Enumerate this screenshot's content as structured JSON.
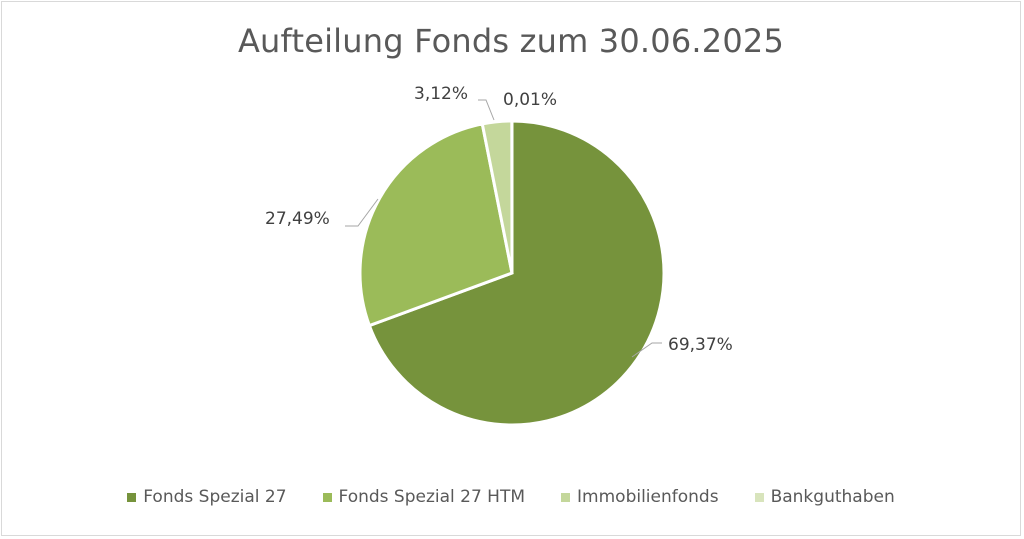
{
  "chart_data": {
    "type": "pie",
    "title": "Aufteilung Fonds zum 30.06.2025",
    "categories": [
      "Fonds Spezial 27",
      "Fonds Spezial 27 HTM",
      "Immobilienfonds",
      "Bankguthaben"
    ],
    "values": [
      69.37,
      27.49,
      3.12,
      0.01
    ],
    "data_labels": [
      "69,37%",
      "27,49%",
      "3,12%",
      "0,01%"
    ],
    "colors": [
      "#76933c",
      "#9bbb59",
      "#c4d79b",
      "#d8e4bc"
    ],
    "legend_position": "bottom"
  }
}
